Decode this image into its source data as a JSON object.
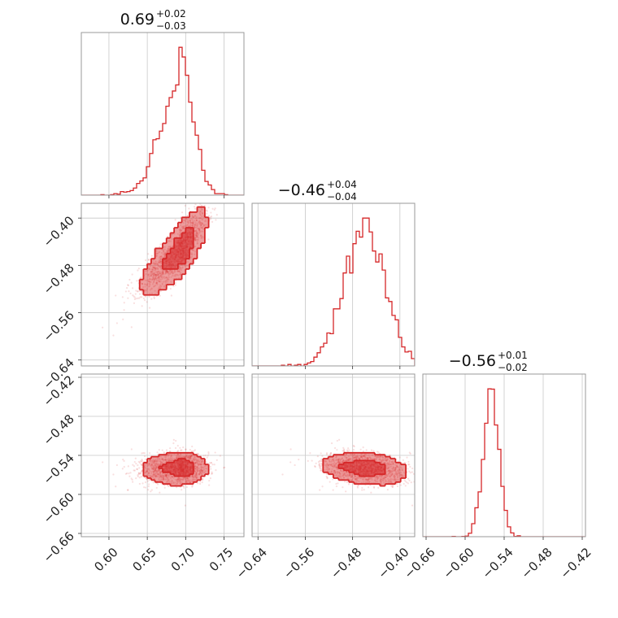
{
  "chart_data": {
    "type": "corner",
    "color": "#d62728",
    "parameters": [
      {
        "title": "0.69",
        "plus": "+0.02",
        "minus": "−0.03",
        "median": 0.69,
        "sigma": 0.02,
        "range": [
          0.564,
          0.776
        ],
        "ticks": [
          {
            "v": 0.6,
            "label": "0.60"
          },
          {
            "v": 0.65,
            "label": "0.65"
          },
          {
            "v": 0.7,
            "label": "0.70"
          },
          {
            "v": 0.75,
            "label": "0.75"
          }
        ]
      },
      {
        "title": "−0.46",
        "plus": "+0.04",
        "minus": "−0.04",
        "median": -0.46,
        "sigma": 0.035,
        "range": [
          -0.65,
          -0.375
        ],
        "ticks": [
          {
            "v": -0.64,
            "label": "−0.64"
          },
          {
            "v": -0.56,
            "label": "−0.56"
          },
          {
            "v": -0.48,
            "label": "−0.48"
          },
          {
            "v": -0.4,
            "label": "−0.40"
          }
        ]
      },
      {
        "title": "−0.56",
        "plus": "+0.01",
        "minus": "−0.02",
        "median": -0.56,
        "sigma": 0.012,
        "range": [
          -0.665,
          -0.415
        ],
        "ticks": [
          {
            "v": -0.66,
            "label": "−0.66"
          },
          {
            "v": -0.6,
            "label": "−0.60"
          },
          {
            "v": -0.54,
            "label": "−0.54"
          },
          {
            "v": -0.48,
            "label": "−0.48"
          },
          {
            "v": -0.42,
            "label": "−0.42"
          }
        ]
      }
    ],
    "row_ticks": [
      [],
      [
        {
          "v": -0.4,
          "label": "−0.40"
        },
        {
          "v": -0.48,
          "label": "−0.48"
        },
        {
          "v": -0.56,
          "label": "−0.56"
        },
        {
          "v": -0.64,
          "label": "−0.64"
        }
      ],
      [
        {
          "v": -0.42,
          "label": "−0.42"
        },
        {
          "v": -0.48,
          "label": "−0.48"
        },
        {
          "v": -0.54,
          "label": "−0.54"
        },
        {
          "v": -0.6,
          "label": "−0.60"
        },
        {
          "v": -0.66,
          "label": "−0.66"
        }
      ]
    ],
    "correlations": {
      "p0_p1": 0.85,
      "p0_p2": 0.05,
      "p1_p2": -0.25
    },
    "grid": true
  }
}
